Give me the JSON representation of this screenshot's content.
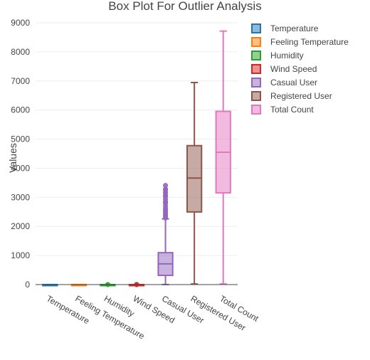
{
  "chart_data": {
    "type": "box",
    "title": "Box Plot For Outlier Analysis",
    "xlabel": "",
    "ylabel": "Values",
    "ylim": [
      0,
      9000
    ],
    "yticks": [
      0,
      1000,
      2000,
      3000,
      4000,
      5000,
      6000,
      7000,
      8000,
      9000
    ],
    "grid": true,
    "legend_position": "top-right",
    "categories": [
      "Temperature",
      "Feeling Temperature",
      "Humidity",
      "Wind Speed",
      "Casual User",
      "Registered User",
      "Total Count"
    ],
    "series": [
      {
        "name": "Temperature",
        "color": "#1f77b4",
        "min": 0,
        "q1": 0,
        "median": 0,
        "q3": 1,
        "max": 1,
        "outliers": []
      },
      {
        "name": "Feeling Temperature",
        "color": "#ff7f0e",
        "min": 0,
        "q1": 0,
        "median": 0,
        "q3": 1,
        "max": 1,
        "outliers": []
      },
      {
        "name": "Humidity",
        "color": "#2ca02c",
        "min": 0,
        "q1": 1,
        "median": 1,
        "q3": 1,
        "max": 1,
        "outliers": [
          0
        ]
      },
      {
        "name": "Wind Speed",
        "color": "#d62728",
        "min": 0,
        "q1": 0,
        "median": 0,
        "q3": 0,
        "max": 1,
        "outliers": [
          0,
          0,
          1
        ]
      },
      {
        "name": "Casual User",
        "color": "#9467bd",
        "min": 2,
        "q1": 316,
        "median": 713,
        "q3": 1096,
        "max": 2258,
        "outliers": [
          2290,
          2301,
          2355,
          2401,
          2469,
          2521,
          2557,
          2622,
          2704,
          2795,
          2846,
          2935,
          3031,
          3065,
          3155,
          3160,
          3252,
          3283,
          3410
        ]
      },
      {
        "name": "Registered User",
        "color": "#8c564b",
        "min": 20,
        "q1": 2497,
        "median": 3662,
        "q3": 4776,
        "max": 6946,
        "outliers": []
      },
      {
        "name": "Total Count",
        "color": "#e377c2",
        "min": 22,
        "q1": 3152,
        "median": 4548,
        "q3": 5956,
        "max": 8714,
        "outliers": []
      }
    ]
  }
}
